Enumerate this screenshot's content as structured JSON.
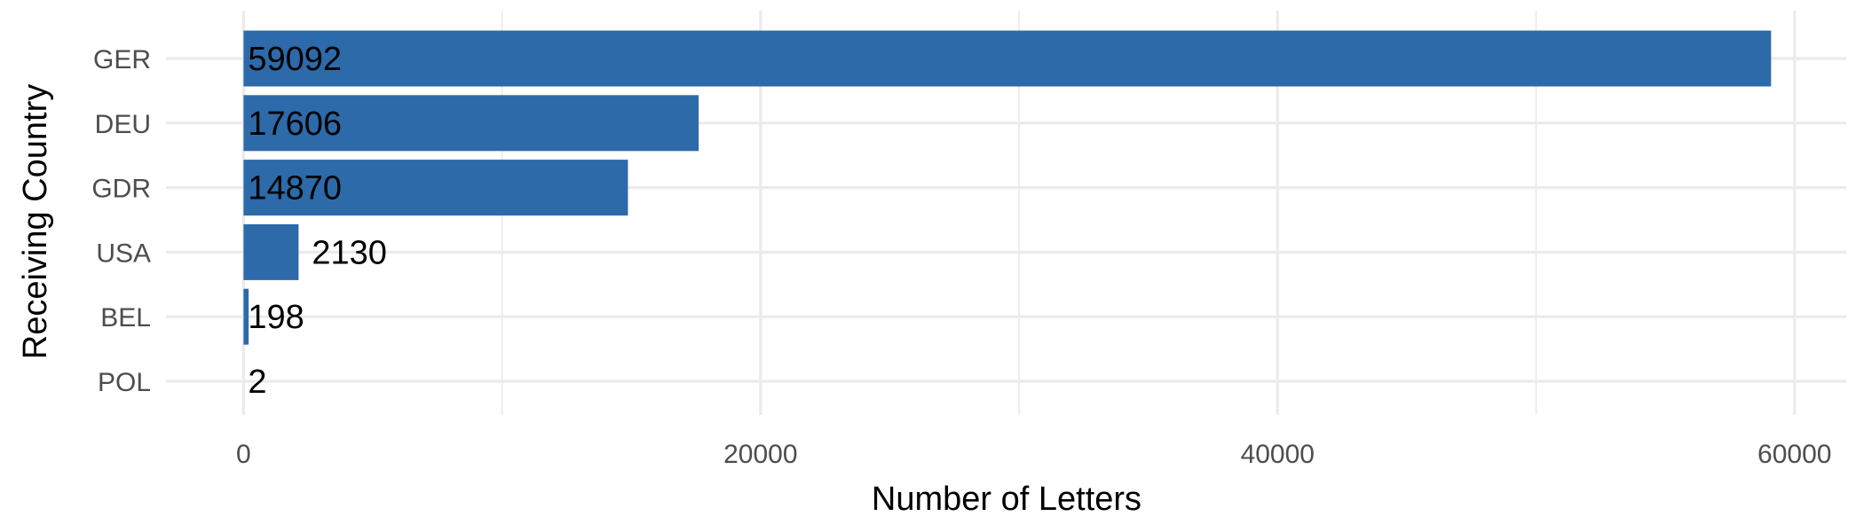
{
  "chart_data": {
    "type": "bar",
    "orientation": "horizontal",
    "title": "",
    "xlabel": "Number of Letters",
    "ylabel": "Receiving Country",
    "categories": [
      "GER",
      "DEU",
      "GDR",
      "USA",
      "BEL",
      "POL"
    ],
    "values": [
      59092,
      17606,
      14870,
      2130,
      198,
      2
    ],
    "xlim": [
      -3000,
      62000
    ],
    "xticks": [
      0,
      20000,
      40000,
      60000
    ],
    "xtick_labels": [
      "0",
      "20000",
      "40000",
      "60000"
    ],
    "minor_xticks": [
      10000,
      30000,
      50000
    ],
    "grid": true,
    "legend": "none",
    "bar_color": "#2c6aaa"
  }
}
